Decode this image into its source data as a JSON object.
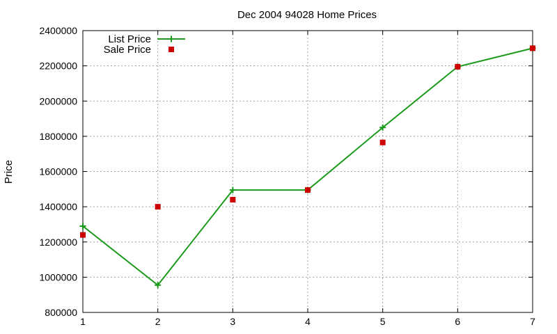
{
  "chart_data": {
    "type": "line",
    "title": "Dec 2004 94028 Home Prices",
    "xlabel": "",
    "ylabel": "Price",
    "xlim": [
      1,
      7
    ],
    "ylim": [
      800000,
      2400000
    ],
    "x_ticks": [
      "1",
      "2",
      "3",
      "4",
      "5",
      "6",
      "7"
    ],
    "y_ticks": [
      "800000",
      "1000000",
      "1200000",
      "1400000",
      "1600000",
      "1800000",
      "2000000",
      "2200000",
      "2400000"
    ],
    "grid": true,
    "legend_position": "top-left",
    "series": [
      {
        "name": "List Price",
        "style": "lines+points",
        "marker": "plus",
        "color": "#1a9a1a",
        "x": [
          1,
          2,
          3,
          4,
          5,
          6,
          7
        ],
        "values": [
          1290000,
          955000,
          1495000,
          1495000,
          1850000,
          2195000,
          2300000
        ]
      },
      {
        "name": "Sale Price",
        "style": "points",
        "marker": "square",
        "color": "#cc0000",
        "x": [
          1,
          2,
          3,
          4,
          5,
          6,
          7
        ],
        "values": [
          1240000,
          1400000,
          1440000,
          1495000,
          1765000,
          2195000,
          2300000
        ]
      }
    ]
  }
}
